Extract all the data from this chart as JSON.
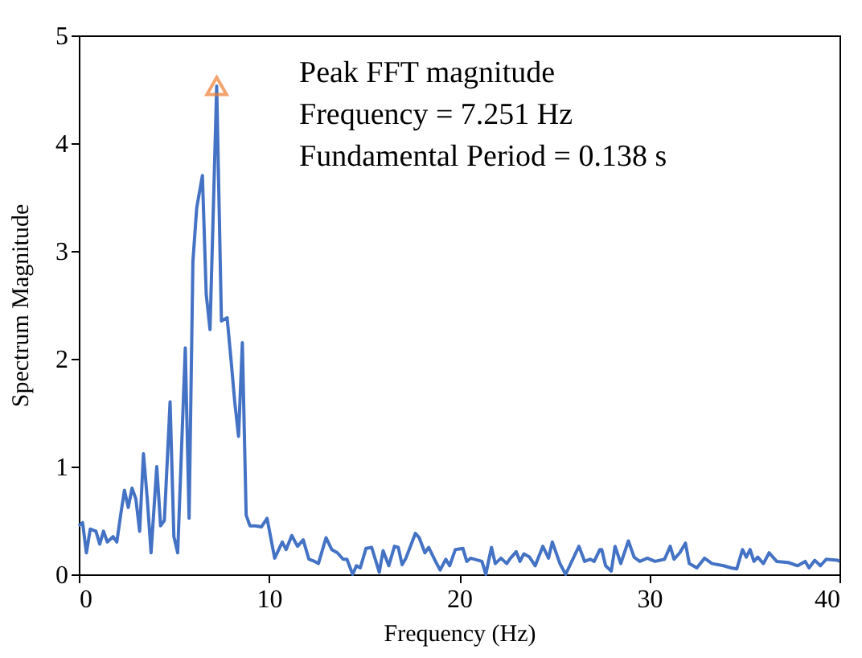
{
  "chart_data": {
    "type": "line",
    "xlabel": "Frequency (Hz)",
    "ylabel": "Spectrum Magnitude",
    "xlim": [
      0,
      40
    ],
    "xticks": [
      0,
      10,
      20,
      30,
      40
    ],
    "ylim": [
      0,
      5
    ],
    "yticks": [
      0,
      1,
      2,
      3,
      4,
      5
    ],
    "grid": false,
    "annotations": [
      "Peak FFT magnitude",
      "Frequency = 7.251 Hz",
      "Fundamental Period = 0.138 s"
    ],
    "series": [
      {
        "color": "#4472c4",
        "marker": "none",
        "line_style": "solid",
        "x": [
          0,
          0.2,
          0.4,
          0.6,
          0.9,
          1.1,
          1.3,
          1.5,
          1.8,
          2.0,
          2.2,
          2.4,
          2.6,
          2.8,
          3.0,
          3.2,
          3.4,
          3.6,
          3.8,
          4.1,
          4.3,
          4.5,
          4.8,
          5.0,
          5.2,
          5.6,
          5.8,
          6.0,
          6.2,
          6.5,
          6.7,
          6.9,
          7.251,
          7.5,
          7.8,
          8.0,
          8.2,
          8.4,
          8.6,
          8.8,
          9.0,
          9.3,
          9.6,
          9.9,
          10.3,
          10.7,
          10.9,
          11.2,
          11.5,
          11.8,
          12.1,
          12.4,
          12.6,
          13.0,
          13.3,
          13.6,
          13.9,
          14.1,
          14.4,
          14.6,
          14.8,
          15.1,
          15.4,
          15.8,
          16.0,
          16.3,
          16.6,
          16.8,
          17.0,
          17.2,
          17.7,
          17.9,
          18.2,
          18.4,
          18.7,
          19.0,
          19.3,
          19.5,
          19.8,
          20.2,
          20.4,
          20.6,
          21.2,
          21.4,
          21.7,
          21.9,
          22.2,
          22.5,
          22.7,
          23.0,
          23.2,
          23.4,
          23.7,
          24.0,
          24.4,
          24.7,
          24.9,
          25.3,
          25.6,
          26.3,
          26.6,
          26.9,
          27.1,
          27.4,
          27.5,
          27.7,
          28.0,
          28.2,
          28.5,
          28.9,
          29.2,
          29.5,
          29.9,
          30.3,
          30.8,
          31.1,
          31.3,
          31.6,
          31.9,
          32.1,
          32.5,
          32.9,
          33.3,
          33.9,
          34.3,
          34.6,
          34.9,
          35.1,
          35.3,
          35.5,
          35.7,
          36.0,
          36.3,
          36.7,
          37.3,
          37.8,
          38.2,
          38.4,
          38.7,
          39.0,
          39.3,
          39.9,
          40
        ],
        "values": [
          0.45,
          0.48,
          0.2,
          0.42,
          0.4,
          0.28,
          0.4,
          0.3,
          0.35,
          0.3,
          0.55,
          0.78,
          0.62,
          0.8,
          0.7,
          0.4,
          1.12,
          0.7,
          0.2,
          1.0,
          0.45,
          0.5,
          1.6,
          0.35,
          0.2,
          2.1,
          0.52,
          2.9,
          3.4,
          3.7,
          2.6,
          2.27,
          4.53,
          2.35,
          2.38,
          2.0,
          1.6,
          1.28,
          2.15,
          0.55,
          0.45,
          0.45,
          0.44,
          0.52,
          0.15,
          0.3,
          0.23,
          0.36,
          0.26,
          0.32,
          0.14,
          0.12,
          0.1,
          0.34,
          0.23,
          0.2,
          0.14,
          0.14,
          0.0,
          0.08,
          0.06,
          0.24,
          0.25,
          0.02,
          0.22,
          0.08,
          0.26,
          0.25,
          0.09,
          0.15,
          0.38,
          0.34,
          0.2,
          0.25,
          0.14,
          0.04,
          0.14,
          0.08,
          0.23,
          0.24,
          0.12,
          0.15,
          0.12,
          0.0,
          0.25,
          0.1,
          0.15,
          0.1,
          0.15,
          0.21,
          0.12,
          0.19,
          0.16,
          0.08,
          0.26,
          0.15,
          0.3,
          0.1,
          0.0,
          0.26,
          0.12,
          0.14,
          0.12,
          0.23,
          0.23,
          0.08,
          0.03,
          0.26,
          0.1,
          0.31,
          0.16,
          0.12,
          0.15,
          0.12,
          0.14,
          0.26,
          0.14,
          0.2,
          0.29,
          0.1,
          0.06,
          0.15,
          0.1,
          0.08,
          0.06,
          0.05,
          0.23,
          0.16,
          0.23,
          0.12,
          0.16,
          0.1,
          0.2,
          0.12,
          0.11,
          0.08,
          0.12,
          0.06,
          0.13,
          0.08,
          0.14,
          0.13,
          0.12
        ]
      },
      {
        "type": "scatter",
        "color": "#ed7d31",
        "marker": "triangle",
        "x": [
          7.251
        ],
        "values": [
          4.53
        ]
      }
    ]
  }
}
